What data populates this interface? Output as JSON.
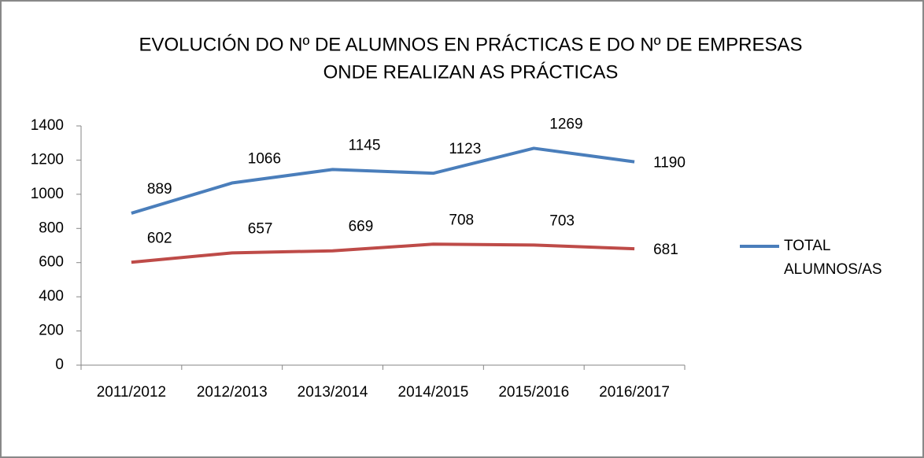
{
  "chart_data": {
    "type": "line",
    "title": [
      "EVOLUCIÓN DO Nº DE ALUMNOS EN PRÁCTICAS E DO Nº DE EMPRESAS",
      "ONDE REALIZAN AS PRÁCTICAS"
    ],
    "categories": [
      "2011/2012",
      "2012/2013",
      "2013/2014",
      "2014/2015",
      "2015/2016",
      "2016/2017"
    ],
    "series": [
      {
        "name": "TOTAL ALUMNOS/AS",
        "color": "#4a7ebb",
        "values": [
          889,
          1066,
          1145,
          1123,
          1269,
          1190
        ]
      },
      {
        "color": "#be4b48",
        "values": [
          602,
          657,
          669,
          708,
          703,
          681
        ]
      }
    ],
    "ylim": [
      0,
      1400
    ],
    "yticks": [
      0,
      200,
      400,
      600,
      800,
      1000,
      1200,
      1400
    ],
    "legend": "right"
  }
}
